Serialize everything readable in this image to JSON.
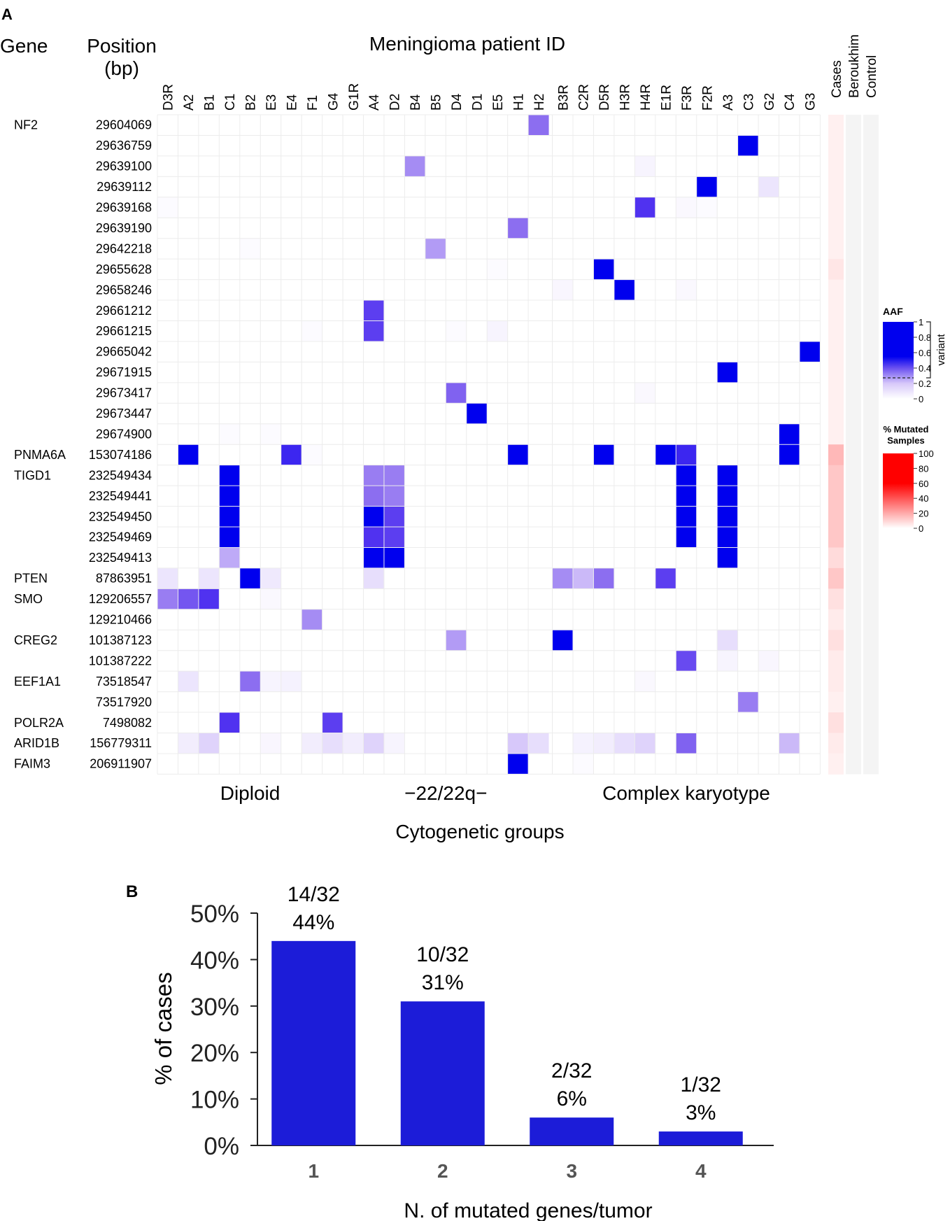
{
  "panel_a": {
    "label": "A",
    "header_gene": "Gene",
    "header_position": "Position",
    "header_position_unit": "(bp)",
    "header_patient": "Meningioma patient ID",
    "bottom_title": "Cytogenetic groups"
  },
  "panel_b": {
    "label": "B"
  },
  "chart_data": [
    {
      "type": "heatmap",
      "title": "Meningioma patient ID",
      "xlabel": "Cytogenetic groups",
      "columns": [
        "D3R",
        "A2",
        "B1",
        "C1",
        "B2",
        "E3",
        "E4",
        "F1",
        "G4",
        "G1R",
        "A4",
        "D2",
        "B4",
        "B5",
        "D4",
        "D1",
        "E5",
        "H1",
        "H2",
        "B3R",
        "C2R",
        "D5R",
        "H3R",
        "H4R",
        "E1R",
        "F3R",
        "F2R",
        "A3",
        "C3",
        "G2",
        "C4",
        "G3"
      ],
      "groups": [
        {
          "name": "Diploid",
          "start": 0,
          "end": 9
        },
        {
          "name": "−22/22q−",
          "start": 9,
          "end": 19
        },
        {
          "name": "Complex karyotype",
          "start": 19,
          "end": 32
        }
      ],
      "rows": [
        {
          "gene": "NF2",
          "position": "29604069"
        },
        {
          "gene": "",
          "position": "29636759"
        },
        {
          "gene": "",
          "position": "29639100"
        },
        {
          "gene": "",
          "position": "29639112"
        },
        {
          "gene": "",
          "position": "29639168"
        },
        {
          "gene": "",
          "position": "29639190"
        },
        {
          "gene": "",
          "position": "29642218"
        },
        {
          "gene": "",
          "position": "29655628"
        },
        {
          "gene": "",
          "position": "29658246"
        },
        {
          "gene": "",
          "position": "29661212"
        },
        {
          "gene": "",
          "position": "29661215"
        },
        {
          "gene": "",
          "position": "29665042"
        },
        {
          "gene": "",
          "position": "29671915"
        },
        {
          "gene": "",
          "position": "29673417"
        },
        {
          "gene": "",
          "position": "29673447"
        },
        {
          "gene": "",
          "position": "29674900"
        },
        {
          "gene": "PNMA6A",
          "position": "153074186"
        },
        {
          "gene": "TIGD1",
          "position": "232549434"
        },
        {
          "gene": "",
          "position": "232549441"
        },
        {
          "gene": "",
          "position": "232549450"
        },
        {
          "gene": "",
          "position": "232549469"
        },
        {
          "gene": "",
          "position": "232549413"
        },
        {
          "gene": "PTEN",
          "position": "87863951"
        },
        {
          "gene": "SMO",
          "position": "129206557"
        },
        {
          "gene": "",
          "position": "129210466"
        },
        {
          "gene": "CREG2",
          "position": "101387123"
        },
        {
          "gene": "",
          "position": "101387222"
        },
        {
          "gene": "EEF1A1",
          "position": "73518547"
        },
        {
          "gene": "",
          "position": "73517920"
        },
        {
          "gene": "POLR2A",
          "position": "7498082"
        },
        {
          "gene": "ARID1B",
          "position": "156779311"
        },
        {
          "gene": "FAIM3",
          "position": "206911907"
        }
      ],
      "aaf_cells": [
        [
          0,
          18,
          0.55
        ],
        [
          1,
          28,
          1.0
        ],
        [
          2,
          12,
          0.45
        ],
        [
          2,
          23,
          0.05
        ],
        [
          3,
          26,
          1.0
        ],
        [
          3,
          29,
          0.12
        ],
        [
          4,
          23,
          0.8
        ],
        [
          4,
          25,
          0.03
        ],
        [
          4,
          26,
          0.02
        ],
        [
          4,
          0,
          0.02
        ],
        [
          5,
          17,
          0.55
        ],
        [
          6,
          13,
          0.4
        ],
        [
          6,
          4,
          0.02
        ],
        [
          7,
          21,
          1.0
        ],
        [
          7,
          16,
          0.02
        ],
        [
          8,
          22,
          1.0
        ],
        [
          8,
          19,
          0.04
        ],
        [
          8,
          25,
          0.03
        ],
        [
          9,
          10,
          0.75
        ],
        [
          10,
          10,
          0.75
        ],
        [
          10,
          16,
          0.05
        ],
        [
          10,
          7,
          0.02
        ],
        [
          10,
          14,
          0.02
        ],
        [
          11,
          31,
          1.0
        ],
        [
          12,
          27,
          1.0
        ],
        [
          13,
          14,
          0.6
        ],
        [
          13,
          23,
          0.03
        ],
        [
          14,
          15,
          1.0
        ],
        [
          15,
          30,
          1.0
        ],
        [
          15,
          3,
          0.02
        ],
        [
          15,
          5,
          0.02
        ],
        [
          16,
          1,
          1.0
        ],
        [
          16,
          6,
          0.85
        ],
        [
          16,
          17,
          1.0
        ],
        [
          16,
          21,
          1.0
        ],
        [
          16,
          24,
          1.0
        ],
        [
          16,
          25,
          0.85
        ],
        [
          16,
          30,
          1.0
        ],
        [
          16,
          7,
          0.02
        ],
        [
          17,
          3,
          1.0
        ],
        [
          17,
          10,
          0.5
        ],
        [
          17,
          11,
          0.5
        ],
        [
          17,
          25,
          1.0
        ],
        [
          17,
          27,
          1.0
        ],
        [
          18,
          3,
          1.0
        ],
        [
          18,
          10,
          0.55
        ],
        [
          18,
          11,
          0.5
        ],
        [
          18,
          25,
          1.0
        ],
        [
          18,
          27,
          1.0
        ],
        [
          19,
          3,
          1.0
        ],
        [
          19,
          10,
          1.0
        ],
        [
          19,
          11,
          0.75
        ],
        [
          19,
          25,
          1.0
        ],
        [
          19,
          27,
          1.0
        ],
        [
          20,
          3,
          1.0
        ],
        [
          20,
          10,
          0.8
        ],
        [
          20,
          11,
          0.75
        ],
        [
          20,
          25,
          1.0
        ],
        [
          20,
          27,
          1.0
        ],
        [
          21,
          3,
          0.35
        ],
        [
          21,
          10,
          1.0
        ],
        [
          21,
          11,
          1.0
        ],
        [
          21,
          27,
          1.0
        ],
        [
          22,
          0,
          0.12
        ],
        [
          22,
          2,
          0.12
        ],
        [
          22,
          4,
          1.0
        ],
        [
          22,
          5,
          0.1
        ],
        [
          22,
          10,
          0.15
        ],
        [
          22,
          19,
          0.45
        ],
        [
          22,
          20,
          0.3
        ],
        [
          22,
          21,
          0.55
        ],
        [
          22,
          24,
          0.75
        ],
        [
          23,
          0,
          0.5
        ],
        [
          23,
          1,
          0.65
        ],
        [
          23,
          2,
          0.8
        ],
        [
          23,
          5,
          0.03
        ],
        [
          24,
          7,
          0.45
        ],
        [
          25,
          14,
          0.4
        ],
        [
          25,
          19,
          1.0
        ],
        [
          25,
          27,
          0.15
        ],
        [
          26,
          25,
          0.7
        ],
        [
          26,
          27,
          0.05
        ],
        [
          26,
          29,
          0.04
        ],
        [
          27,
          1,
          0.12
        ],
        [
          27,
          4,
          0.55
        ],
        [
          27,
          5,
          0.05
        ],
        [
          27,
          6,
          0.06
        ],
        [
          27,
          23,
          0.03
        ],
        [
          28,
          28,
          0.5
        ],
        [
          29,
          3,
          0.8
        ],
        [
          29,
          8,
          0.75
        ],
        [
          30,
          1,
          0.08
        ],
        [
          30,
          2,
          0.2
        ],
        [
          30,
          5,
          0.04
        ],
        [
          30,
          7,
          0.08
        ],
        [
          30,
          8,
          0.15
        ],
        [
          30,
          9,
          0.08
        ],
        [
          30,
          10,
          0.2
        ],
        [
          30,
          11,
          0.05
        ],
        [
          30,
          17,
          0.25
        ],
        [
          30,
          18,
          0.15
        ],
        [
          30,
          20,
          0.06
        ],
        [
          30,
          21,
          0.08
        ],
        [
          30,
          22,
          0.15
        ],
        [
          30,
          23,
          0.2
        ],
        [
          30,
          25,
          0.6
        ],
        [
          30,
          30,
          0.3
        ],
        [
          31,
          17,
          1.0
        ],
        [
          31,
          20,
          0.02
        ]
      ],
      "extra_columns": [
        "Cases",
        "Beroukhim",
        "Control"
      ],
      "cases_pct_mutated": [
        6,
        6,
        6,
        6,
        6,
        6,
        6,
        10,
        6,
        6,
        6,
        6,
        6,
        6,
        6,
        6,
        28,
        22,
        22,
        22,
        22,
        14,
        22,
        12,
        8,
        12,
        8,
        8,
        6,
        12,
        8,
        6
      ],
      "legend_aaf": {
        "title": "AAF",
        "ticks": [
          "1",
          "0.8",
          "0.6",
          "0.4",
          "0.2",
          "0"
        ],
        "bracket_label": "variant"
      },
      "legend_mutated": {
        "title_line1": "% Mutated",
        "title_line2": "Samples",
        "ticks": [
          "100",
          "80",
          "60",
          "40",
          "20",
          "0"
        ]
      },
      "colors": {
        "aaf_high": "#0000ee",
        "aaf_mid": "#6a50f0",
        "pct_high": "#ff0000"
      }
    },
    {
      "type": "bar",
      "categories": [
        "1",
        "2",
        "3",
        "4"
      ],
      "values": [
        44,
        31,
        6,
        3
      ],
      "labels_fraction": [
        "14/32",
        "10/32",
        "2/32",
        "1/32"
      ],
      "labels_pct": [
        "44%",
        "31%",
        "6%",
        "3%"
      ],
      "xlabel": "N. of mutated genes/tumor",
      "ylabel": "% of cases",
      "ylim": [
        0,
        50
      ],
      "yticks": [
        "0%",
        "10%",
        "20%",
        "30%",
        "40%",
        "50%"
      ],
      "color": "#1c1cd8"
    }
  ]
}
